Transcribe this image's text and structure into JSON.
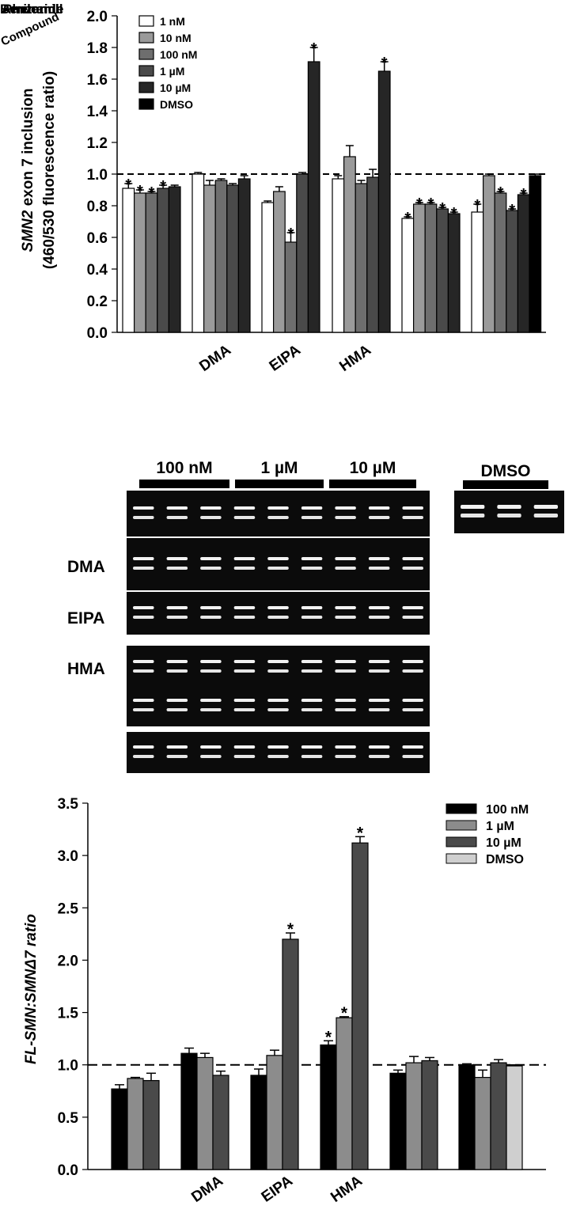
{
  "chart_data": [
    {
      "type": "bar",
      "ylabel_line1": "SMN2 exon 7 inclusion",
      "ylabel_line1_italic": "SMN2",
      "ylabel_line2": "(460/530 fluorescence ratio)",
      "ylim": [
        0,
        2.0
      ],
      "yticks": [
        "0.0",
        "0.2",
        "0.4",
        "0.6",
        "0.8",
        "1.0",
        "1.2",
        "1.4",
        "1.6",
        "1.8",
        "2.0"
      ],
      "reference_line": 1.0,
      "categories": [
        "Amiloride",
        "DMA",
        "EIPA",
        "HMA",
        "Benzamil",
        "Phenamil"
      ],
      "category_labels_visible": [
        "",
        "DMA",
        "EIPA",
        "HMA",
        "",
        ""
      ],
      "overlapping_label_text": [
        "Benzamil",
        "Amiloride",
        "Phenamil",
        "Compound"
      ],
      "legend_position": "top-left",
      "series": [
        {
          "name": "1 nM",
          "color": "#ffffff",
          "values": [
            0.91,
            1.0,
            0.82,
            0.97,
            0.72,
            0.76
          ],
          "errors": [
            0.03,
            0.01,
            0.01,
            0.02,
            0.01,
            0.05
          ],
          "significant": [
            true,
            false,
            false,
            false,
            true,
            true
          ]
        },
        {
          "name": "10 nM",
          "color": "#9a9a9a",
          "values": [
            0.88,
            0.93,
            0.89,
            1.11,
            0.81,
            0.99
          ],
          "errors": [
            0.02,
            0.03,
            0.03,
            0.07,
            0.01,
            0.01
          ],
          "significant": [
            true,
            false,
            false,
            false,
            true,
            false
          ]
        },
        {
          "name": "100 nM",
          "color": "#6e6e6e",
          "values": [
            0.88,
            0.96,
            0.57,
            0.94,
            0.81,
            0.88
          ],
          "errors": [
            0.01,
            0.01,
            0.06,
            0.02,
            0.01,
            0.01
          ],
          "significant": [
            true,
            false,
            true,
            false,
            true,
            true
          ]
        },
        {
          "name": "1 µM",
          "color": "#4a4a4a",
          "values": [
            0.91,
            0.93,
            1.0,
            0.98,
            0.78,
            0.77
          ],
          "errors": [
            0.02,
            0.01,
            0.01,
            0.05,
            0.01,
            0.01
          ],
          "significant": [
            true,
            false,
            false,
            false,
            true,
            true
          ]
        },
        {
          "name": "10 µM",
          "color": "#262626",
          "values": [
            0.92,
            0.97,
            1.71,
            1.65,
            0.75,
            0.87
          ],
          "errors": [
            0.01,
            0.02,
            0.09,
            0.06,
            0.01,
            0.01
          ],
          "significant": [
            false,
            false,
            true,
            true,
            true,
            true
          ]
        },
        {
          "name": "DMSO",
          "color": "#000000",
          "values": [
            null,
            null,
            null,
            null,
            null,
            0.99
          ],
          "errors": [
            null,
            null,
            null,
            null,
            null,
            0.01
          ],
          "significant": [
            false,
            false,
            false,
            false,
            false,
            false
          ]
        }
      ]
    },
    {
      "type": "bar",
      "ylabel": "FL-SMN:SMNΔ7 ratio",
      "ylim": [
        0,
        3.5
      ],
      "yticks": [
        "0.0",
        "0.5",
        "1.0",
        "1.5",
        "2.0",
        "2.5",
        "3.0",
        "3.5"
      ],
      "reference_line": 1.0,
      "categories": [
        "Amiloride",
        "DMA",
        "EIPA",
        "HMA",
        "Benzamil",
        "Phenamil"
      ],
      "category_labels_visible": [
        "",
        "DMA",
        "EIPA",
        "HMA",
        "",
        ""
      ],
      "legend_position": "top-right",
      "series": [
        {
          "name": "100 nM",
          "color": "#000000",
          "values": [
            0.77,
            1.11,
            0.9,
            1.19,
            0.92,
            1.0
          ],
          "errors": [
            0.04,
            0.05,
            0.06,
            0.04,
            0.03,
            0.01
          ],
          "significant": [
            false,
            false,
            false,
            true,
            false,
            false
          ]
        },
        {
          "name": "1 µM",
          "color": "#8c8c8c",
          "values": [
            0.87,
            1.07,
            1.09,
            1.45,
            1.02,
            0.88
          ],
          "errors": [
            0.01,
            0.04,
            0.05,
            0.01,
            0.06,
            0.07
          ],
          "significant": [
            false,
            false,
            false,
            true,
            false,
            false
          ]
        },
        {
          "name": "10 µM",
          "color": "#4a4a4a",
          "values": [
            0.85,
            0.9,
            2.2,
            3.12,
            1.04,
            1.02
          ],
          "errors": [
            0.07,
            0.04,
            0.06,
            0.06,
            0.03,
            0.03
          ],
          "significant": [
            false,
            false,
            true,
            true,
            false,
            false
          ]
        },
        {
          "name": "DMSO",
          "color": "#cfcfcf",
          "values": [
            null,
            null,
            null,
            null,
            null,
            0.99
          ],
          "errors": [
            null,
            null,
            null,
            null,
            null,
            0.01
          ],
          "significant": [
            false,
            false,
            false,
            false,
            false,
            false
          ]
        }
      ]
    }
  ],
  "gel": {
    "headers": [
      "100 nM",
      "1 µM",
      "10 µM"
    ],
    "dmso_header": "DMSO",
    "row_labels": [
      "",
      "DMA",
      "EIPA",
      "HMA",
      "",
      ""
    ],
    "lanes_per_row": 9,
    "dmso_lanes": 3
  }
}
